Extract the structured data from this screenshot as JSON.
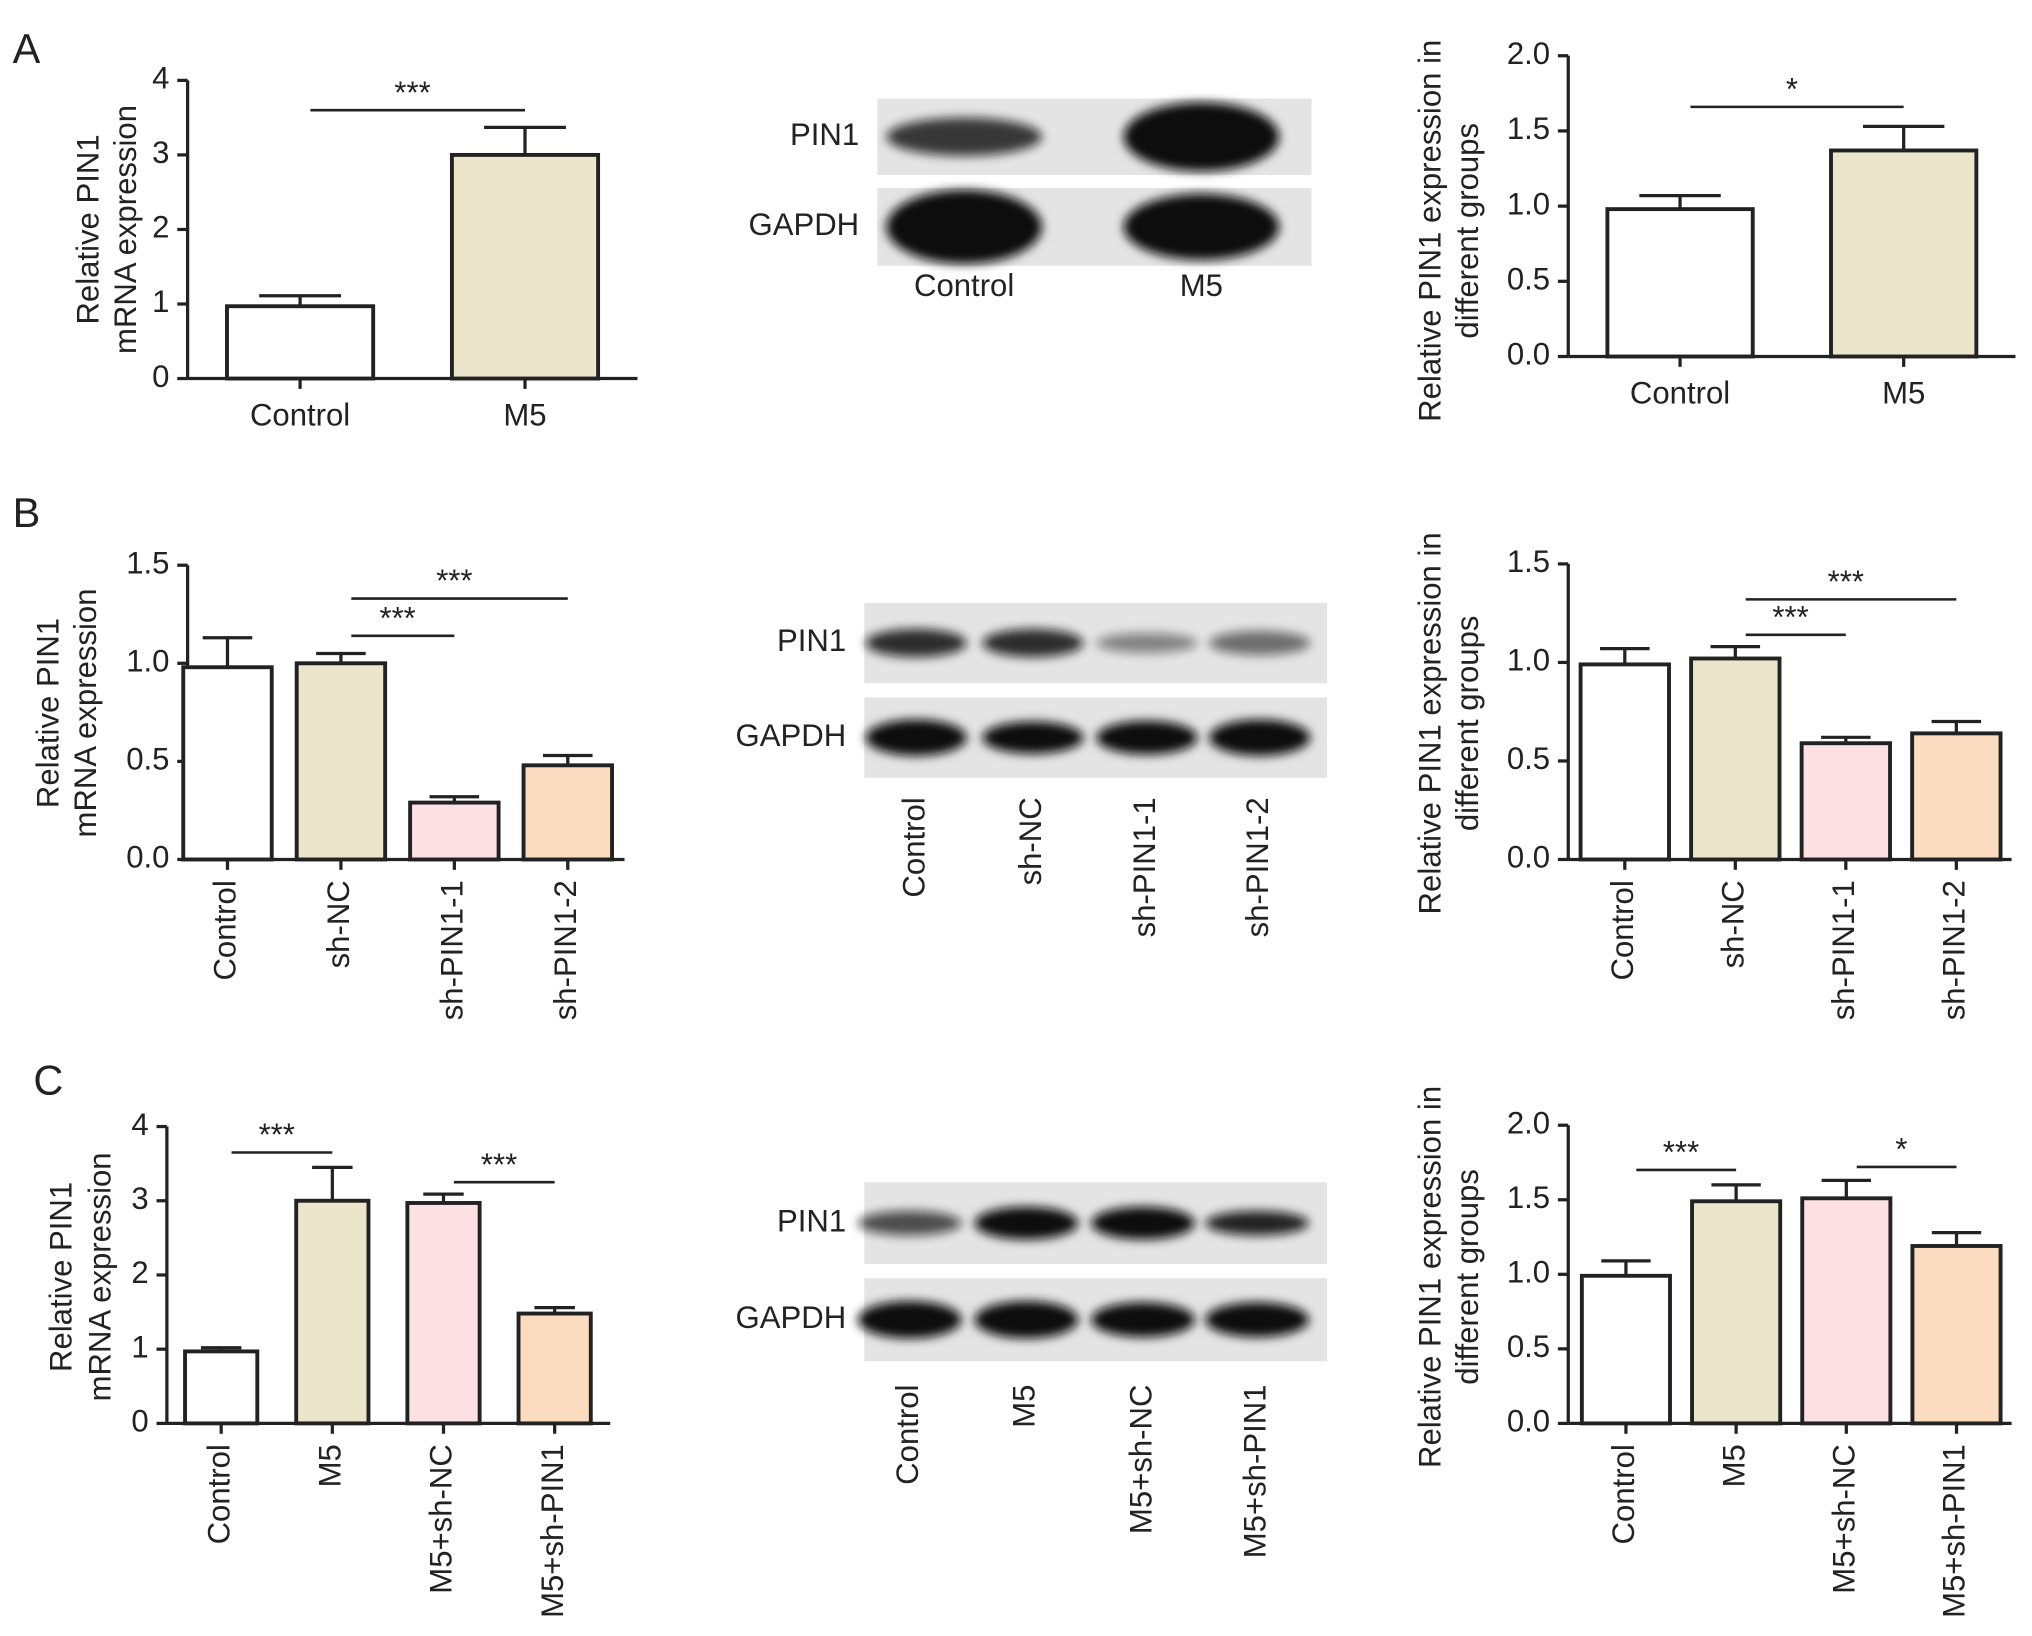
{
  "panel_labels": [
    "A",
    "B",
    "C"
  ],
  "blots": [
    {
      "rows": [
        "PIN1",
        "GAPDH"
      ],
      "lanes": [
        "Control",
        "M5"
      ]
    },
    {
      "rows": [
        "PIN1",
        "GAPDH"
      ],
      "lanes": [
        "Control",
        "sh-NC",
        "sh-PIN1-1",
        "sh-PIN1-2"
      ]
    },
    {
      "rows": [
        "PIN1",
        "GAPDH"
      ],
      "lanes": [
        "Control",
        "M5",
        "M5+sh-NC",
        "M5+sh-PIN1"
      ]
    }
  ],
  "chart_data": [
    {
      "type": "bar",
      "ylabel": [
        "Relative PIN1",
        "mRNA expression"
      ],
      "categories": [
        "Control",
        "M5"
      ],
      "values": [
        0.97,
        3.0
      ],
      "errors": [
        0.14,
        0.37
      ],
      "colors": [
        "#ffffff",
        "#ebe5cc"
      ],
      "ylim": [
        0,
        4
      ],
      "yticks": [
        0,
        1,
        2,
        3,
        4
      ],
      "annotations": [
        {
          "text": "***",
          "from": 0,
          "to": 1,
          "y": 3.6
        }
      ]
    },
    {
      "type": "bar",
      "ylabel": [
        "Relative PIN1 expression in",
        "different groups"
      ],
      "categories": [
        "Control",
        "M5"
      ],
      "values": [
        0.98,
        1.37
      ],
      "errors": [
        0.09,
        0.16
      ],
      "colors": [
        "#ffffff",
        "#ebe5cc"
      ],
      "ylim": [
        0,
        2
      ],
      "yticks": [
        {
          "value": 0,
          "label": "0.0"
        },
        {
          "value": 0.5,
          "label": "0.5"
        },
        {
          "value": 1,
          "label": "1.0"
        },
        {
          "value": 1.5,
          "label": "1.5"
        },
        {
          "value": 2,
          "label": "2.0"
        }
      ],
      "annotations": [
        {
          "text": "*",
          "from": 0,
          "to": 1,
          "y": 1.66
        }
      ]
    },
    {
      "type": "bar",
      "ylabel": [
        "Relative PIN1",
        "mRNA expression"
      ],
      "categories": [
        "Control",
        "sh-NC",
        "sh-PIN1-1",
        "sh-PIN1-2"
      ],
      "values": [
        0.98,
        1.0,
        0.29,
        0.48
      ],
      "errors": [
        0.15,
        0.05,
        0.03,
        0.05
      ],
      "colors": [
        "#ffffff",
        "#ebe5cc",
        "#fde0e3",
        "#fbdcc0"
      ],
      "ylim": [
        0,
        1.5
      ],
      "yticks": [
        {
          "value": 0,
          "label": "0.0"
        },
        {
          "value": 0.5,
          "label": "0.5"
        },
        {
          "value": 1,
          "label": "1.0"
        },
        {
          "value": 1.5,
          "label": "1.5"
        }
      ],
      "annotations": [
        {
          "text": "***",
          "from": 1,
          "to": 2,
          "y": 1.14
        },
        {
          "text": "***",
          "from": 1,
          "to": 3,
          "y": 1.33
        }
      ]
    },
    {
      "type": "bar",
      "ylabel": [
        "Relative PIN1 expression in",
        "different groups"
      ],
      "categories": [
        "Control",
        "sh-NC",
        "sh-PIN1-1",
        "sh-PIN1-2"
      ],
      "values": [
        0.99,
        1.02,
        0.59,
        0.64
      ],
      "errors": [
        0.08,
        0.06,
        0.03,
        0.06
      ],
      "colors": [
        "#ffffff",
        "#ebe5cc",
        "#fde0e3",
        "#fbdcc0"
      ],
      "ylim": [
        0,
        1.5
      ],
      "yticks": [
        {
          "value": 0,
          "label": "0.0"
        },
        {
          "value": 0.5,
          "label": "0.5"
        },
        {
          "value": 1,
          "label": "1.0"
        },
        {
          "value": 1.5,
          "label": "1.5"
        }
      ],
      "annotations": [
        {
          "text": "***",
          "from": 1,
          "to": 2,
          "y": 1.14
        },
        {
          "text": "***",
          "from": 1,
          "to": 3,
          "y": 1.32
        }
      ]
    },
    {
      "type": "bar",
      "ylabel": [
        "Relative PIN1",
        "mRNA expression"
      ],
      "categories": [
        "Control",
        "M5",
        "M5+sh-NC",
        "M5+sh-PIN1"
      ],
      "values": [
        0.97,
        3.0,
        2.97,
        1.48
      ],
      "errors": [
        0.05,
        0.45,
        0.12,
        0.08
      ],
      "colors": [
        "#ffffff",
        "#ebe5cc",
        "#fde0e3",
        "#fbdcc0"
      ],
      "ylim": [
        0,
        4
      ],
      "yticks": [
        0,
        1,
        2,
        3,
        4
      ],
      "annotations": [
        {
          "text": "***",
          "from": 0,
          "to": 1,
          "y": 3.65
        },
        {
          "text": "***",
          "from": 2,
          "to": 3,
          "y": 3.25
        }
      ]
    },
    {
      "type": "bar",
      "ylabel": [
        "Relative PIN1 expression in",
        "different groups"
      ],
      "categories": [
        "Control",
        "M5",
        "M5+sh-NC",
        "M5+sh-PIN1"
      ],
      "values": [
        0.99,
        1.49,
        1.51,
        1.19
      ],
      "errors": [
        0.1,
        0.11,
        0.12,
        0.09
      ],
      "colors": [
        "#ffffff",
        "#ebe5cc",
        "#fde0e3",
        "#fbdcc0"
      ],
      "ylim": [
        0,
        2
      ],
      "yticks": [
        {
          "value": 0,
          "label": "0.0"
        },
        {
          "value": 0.5,
          "label": "0.5"
        },
        {
          "value": 1,
          "label": "1.0"
        },
        {
          "value": 1.5,
          "label": "1.5"
        },
        {
          "value": 2,
          "label": "2.0"
        }
      ],
      "annotations": [
        {
          "text": "***",
          "from": 0,
          "to": 1,
          "y": 1.7
        },
        {
          "text": "*",
          "from": 2,
          "to": 3,
          "y": 1.72
        }
      ]
    }
  ]
}
